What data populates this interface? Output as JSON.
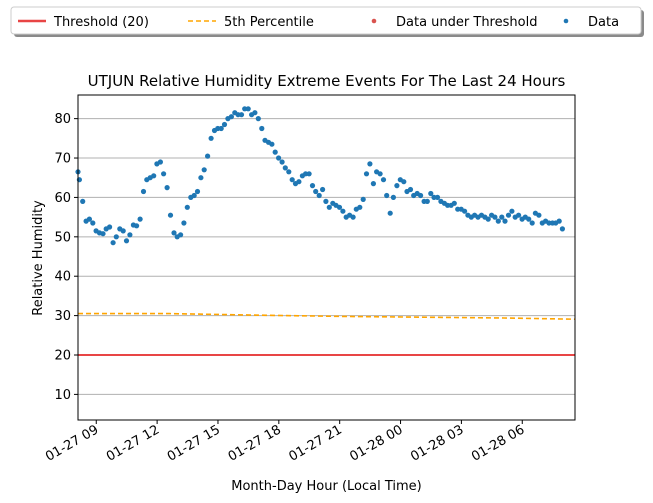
{
  "chart_data": {
    "type": "scatter",
    "title": "UTJUN Relative Humidity Extreme Events For The Last 24 Hours",
    "xlabel": "Month-Day Hour (Local Time)",
    "ylabel": "Relative Humidity",
    "x_unit": "hours since 01-27 00:00",
    "xlim": [
      8.1,
      32.6
    ],
    "ylim": [
      3.5,
      86
    ],
    "grid": "horizontal",
    "legend_position": "top",
    "legend": [
      {
        "label": "Threshold (20)",
        "kind": "solid-line",
        "color": "#e84545"
      },
      {
        "label": "5th Percentile",
        "kind": "dashed-line",
        "color": "#ffa500"
      },
      {
        "label": "Data under Threshold",
        "kind": "dot",
        "color": "#d9534f"
      },
      {
        "label": "Data",
        "kind": "dot",
        "color": "#1f77b4"
      }
    ],
    "xticks": [
      {
        "label": "01-27 09",
        "x": 9
      },
      {
        "label": "01-27 12",
        "x": 12
      },
      {
        "label": "01-27 15",
        "x": 15
      },
      {
        "label": "01-27 18",
        "x": 18
      },
      {
        "label": "01-27 21",
        "x": 21
      },
      {
        "label": "01-28 00",
        "x": 24
      },
      {
        "label": "01-28 03",
        "x": 27
      },
      {
        "label": "01-28 06",
        "x": 30
      }
    ],
    "yticks": [
      10,
      20,
      30,
      40,
      50,
      60,
      70,
      80
    ],
    "threshold": {
      "name": "Threshold (20)",
      "value": 20,
      "color": "#e84545"
    },
    "percentile": {
      "name": "5th Percentile",
      "color": "#ffa500",
      "x": [
        8.1,
        12.6,
        17.1,
        21.1,
        25.1,
        29.1,
        32.6
      ],
      "y": [
        30.5,
        30.5,
        30.1,
        29.8,
        29.6,
        29.4,
        29.1
      ]
    },
    "data_under_threshold": [],
    "data": [
      [
        8.1,
        66.5
      ],
      [
        8.17,
        64.5
      ],
      [
        8.33,
        59.0
      ],
      [
        8.5,
        54.0
      ],
      [
        8.66,
        54.5
      ],
      [
        8.83,
        53.5
      ],
      [
        8.99,
        51.5
      ],
      [
        9.16,
        51.0
      ],
      [
        9.33,
        50.8
      ],
      [
        9.49,
        52.0
      ],
      [
        9.66,
        52.5
      ],
      [
        9.83,
        48.5
      ],
      [
        9.99,
        50.0
      ],
      [
        10.16,
        52.0
      ],
      [
        10.33,
        51.5
      ],
      [
        10.49,
        49.0
      ],
      [
        10.66,
        50.5
      ],
      [
        10.83,
        53.0
      ],
      [
        10.99,
        52.8
      ],
      [
        11.16,
        54.5
      ],
      [
        11.33,
        61.5
      ],
      [
        11.49,
        64.5
      ],
      [
        11.66,
        65.0
      ],
      [
        11.83,
        65.5
      ],
      [
        11.99,
        68.5
      ],
      [
        12.16,
        69.0
      ],
      [
        12.32,
        66.0
      ],
      [
        12.49,
        62.5
      ],
      [
        12.66,
        55.5
      ],
      [
        12.83,
        51.0
      ],
      [
        12.99,
        50.0
      ],
      [
        13.16,
        50.5
      ],
      [
        13.32,
        53.5
      ],
      [
        13.49,
        57.5
      ],
      [
        13.66,
        60.0
      ],
      [
        13.83,
        60.5
      ],
      [
        13.99,
        61.5
      ],
      [
        14.16,
        65.0
      ],
      [
        14.32,
        67.0
      ],
      [
        14.49,
        70.5
      ],
      [
        14.66,
        75.0
      ],
      [
        14.83,
        77.0
      ],
      [
        14.99,
        77.5
      ],
      [
        15.16,
        77.5
      ],
      [
        15.32,
        78.5
      ],
      [
        15.49,
        80.0
      ],
      [
        15.66,
        80.5
      ],
      [
        15.83,
        81.5
      ],
      [
        15.99,
        81.0
      ],
      [
        16.16,
        81.0
      ],
      [
        16.32,
        82.5
      ],
      [
        16.49,
        82.5
      ],
      [
        16.66,
        81.0
      ],
      [
        16.82,
        81.5
      ],
      [
        16.99,
        80.0
      ],
      [
        17.16,
        77.5
      ],
      [
        17.32,
        74.5
      ],
      [
        17.49,
        74.0
      ],
      [
        17.66,
        73.5
      ],
      [
        17.82,
        71.5
      ],
      [
        17.99,
        70.0
      ],
      [
        18.16,
        69.0
      ],
      [
        18.32,
        67.5
      ],
      [
        18.49,
        66.5
      ],
      [
        18.66,
        64.5
      ],
      [
        18.82,
        63.5
      ],
      [
        18.99,
        64.0
      ],
      [
        19.16,
        65.5
      ],
      [
        19.32,
        66.0
      ],
      [
        19.49,
        66.0
      ],
      [
        19.66,
        63.0
      ],
      [
        19.82,
        61.5
      ],
      [
        19.99,
        60.5
      ],
      [
        20.16,
        62.0
      ],
      [
        20.32,
        59.0
      ],
      [
        20.49,
        57.5
      ],
      [
        20.66,
        58.5
      ],
      [
        20.82,
        58.0
      ],
      [
        20.99,
        57.5
      ],
      [
        21.16,
        56.5
      ],
      [
        21.32,
        55.0
      ],
      [
        21.49,
        55.5
      ],
      [
        21.66,
        55.0
      ],
      [
        21.82,
        57.0
      ],
      [
        21.99,
        57.5
      ],
      [
        22.16,
        59.5
      ],
      [
        22.32,
        66.0
      ],
      [
        22.49,
        68.5
      ],
      [
        22.66,
        63.5
      ],
      [
        22.82,
        66.5
      ],
      [
        22.99,
        66.0
      ],
      [
        23.16,
        64.5
      ],
      [
        23.32,
        60.5
      ],
      [
        23.49,
        56.0
      ],
      [
        23.65,
        60.0
      ],
      [
        23.82,
        63.0
      ],
      [
        23.99,
        64.5
      ],
      [
        24.16,
        64.0
      ],
      [
        24.32,
        61.5
      ],
      [
        24.49,
        62.0
      ],
      [
        24.65,
        60.5
      ],
      [
        24.82,
        61.0
      ],
      [
        24.99,
        60.5
      ],
      [
        25.16,
        59.0
      ],
      [
        25.32,
        59.0
      ],
      [
        25.49,
        61.0
      ],
      [
        25.65,
        60.0
      ],
      [
        25.82,
        60.0
      ],
      [
        25.99,
        59.0
      ],
      [
        26.16,
        58.5
      ],
      [
        26.32,
        58.0
      ],
      [
        26.49,
        58.0
      ],
      [
        26.65,
        58.5
      ],
      [
        26.82,
        57.0
      ],
      [
        26.99,
        57.0
      ],
      [
        27.16,
        56.5
      ],
      [
        27.32,
        55.5
      ],
      [
        27.49,
        55.0
      ],
      [
        27.65,
        55.5
      ],
      [
        27.82,
        55.0
      ],
      [
        27.99,
        55.5
      ],
      [
        28.16,
        55.0
      ],
      [
        28.32,
        54.5
      ],
      [
        28.49,
        55.5
      ],
      [
        28.65,
        55.0
      ],
      [
        28.82,
        54.0
      ],
      [
        28.99,
        55.0
      ],
      [
        29.15,
        54.0
      ],
      [
        29.32,
        55.5
      ],
      [
        29.49,
        56.5
      ],
      [
        29.65,
        55.0
      ],
      [
        29.82,
        55.5
      ],
      [
        29.99,
        54.5
      ],
      [
        30.15,
        55.0
      ],
      [
        30.32,
        54.5
      ],
      [
        30.49,
        53.5
      ],
      [
        30.65,
        56.0
      ],
      [
        30.82,
        55.5
      ],
      [
        30.99,
        53.5
      ],
      [
        31.15,
        54.0
      ],
      [
        31.32,
        53.5
      ],
      [
        31.49,
        53.5
      ],
      [
        31.65,
        53.5
      ],
      [
        31.82,
        54.0
      ],
      [
        31.98,
        52.0
      ]
    ]
  }
}
